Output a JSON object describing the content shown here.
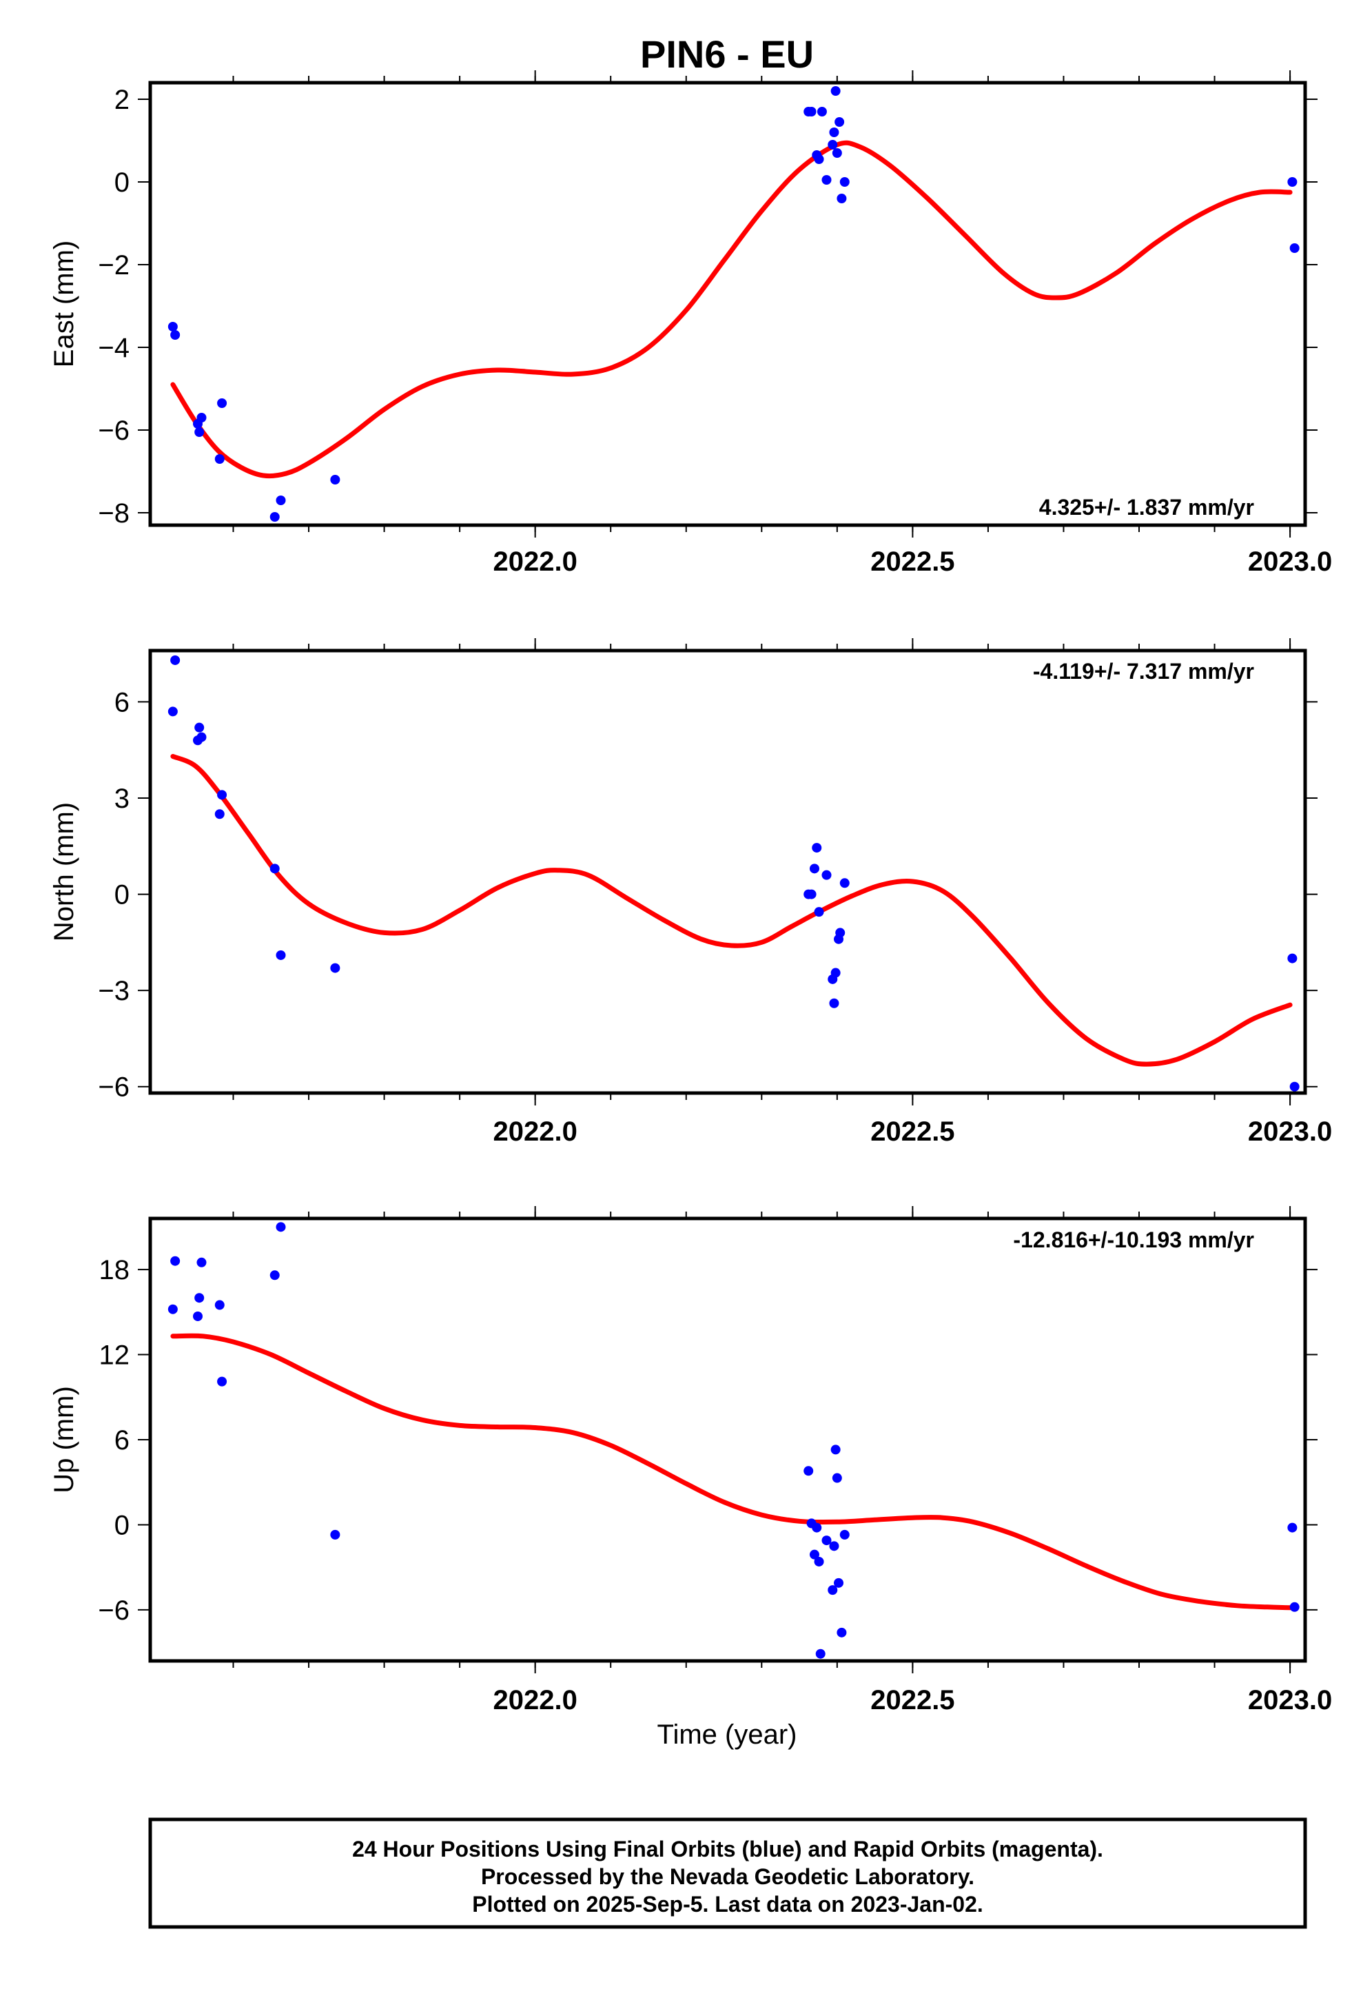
{
  "title": "PIN6 - EU",
  "xlabel": "Time (year)",
  "footer": [
    "24 Hour Positions Using Final Orbits (blue) and Rapid Orbits (magenta).",
    "Processed by the Nevada Geodetic Laboratory.",
    "Plotted on 2025-Sep-5. Last data on 2023-Jan-02."
  ],
  "colors": {
    "points": "#0000ff",
    "fit": "#ff0000",
    "frame": "#000000"
  },
  "chart_data": [
    {
      "type": "scatter",
      "name": "east",
      "ylabel": "East (mm)",
      "rate": "4.325+/- 1.837 mm/yr",
      "xlim": [
        2021.49,
        2023.02
      ],
      "ylim": [
        -8.3,
        2.4
      ],
      "yticks": [
        2,
        0,
        -2,
        -4,
        -6,
        -8
      ],
      "yticklabels": [
        "2",
        "0",
        "−2",
        "−4",
        "−6",
        "−8"
      ],
      "xticks": [
        2022.0,
        2022.5,
        2023.0
      ],
      "xticklabels": [
        "2022.0",
        "2022.5",
        "2023.0"
      ],
      "points": [
        [
          2021.52,
          -3.5
        ],
        [
          2021.523,
          -3.7
        ],
        [
          2021.553,
          -5.85
        ],
        [
          2021.555,
          -6.05
        ],
        [
          2021.558,
          -5.7
        ],
        [
          2021.582,
          -6.7
        ],
        [
          2021.585,
          -5.35
        ],
        [
          2021.655,
          -8.1
        ],
        [
          2021.663,
          -7.7
        ],
        [
          2021.735,
          -7.2
        ],
        [
          2022.362,
          1.7
        ],
        [
          2022.366,
          1.7
        ],
        [
          2022.373,
          0.65
        ],
        [
          2022.376,
          0.55
        ],
        [
          2022.38,
          1.7
        ],
        [
          2022.386,
          0.05
        ],
        [
          2022.394,
          0.9
        ],
        [
          2022.396,
          1.2
        ],
        [
          2022.398,
          2.2
        ],
        [
          2022.4,
          0.7
        ],
        [
          2022.403,
          1.45
        ],
        [
          2022.406,
          -0.4
        ],
        [
          2022.41,
          0.0
        ],
        [
          2023.003,
          0.0
        ],
        [
          2023.006,
          -1.6
        ]
      ],
      "fit": [
        [
          2021.52,
          -4.9
        ],
        [
          2021.55,
          -5.8
        ],
        [
          2021.58,
          -6.5
        ],
        [
          2021.61,
          -6.9
        ],
        [
          2021.64,
          -7.1
        ],
        [
          2021.67,
          -7.05
        ],
        [
          2021.7,
          -6.8
        ],
        [
          2021.75,
          -6.2
        ],
        [
          2021.8,
          -5.5
        ],
        [
          2021.85,
          -4.95
        ],
        [
          2021.9,
          -4.65
        ],
        [
          2021.95,
          -4.55
        ],
        [
          2022.0,
          -4.6
        ],
        [
          2022.05,
          -4.65
        ],
        [
          2022.1,
          -4.5
        ],
        [
          2022.15,
          -4.0
        ],
        [
          2022.2,
          -3.1
        ],
        [
          2022.25,
          -1.9
        ],
        [
          2022.3,
          -0.7
        ],
        [
          2022.35,
          0.3
        ],
        [
          2022.4,
          0.9
        ],
        [
          2022.43,
          0.85
        ],
        [
          2022.47,
          0.4
        ],
        [
          2022.52,
          -0.4
        ],
        [
          2022.57,
          -1.3
        ],
        [
          2022.62,
          -2.2
        ],
        [
          2022.66,
          -2.7
        ],
        [
          2022.69,
          -2.8
        ],
        [
          2022.72,
          -2.7
        ],
        [
          2022.77,
          -2.2
        ],
        [
          2022.82,
          -1.5
        ],
        [
          2022.87,
          -0.9
        ],
        [
          2022.92,
          -0.45
        ],
        [
          2022.96,
          -0.25
        ],
        [
          2023.0,
          -0.25
        ]
      ]
    },
    {
      "type": "scatter",
      "name": "north",
      "ylabel": "North (mm)",
      "rate": "-4.119+/- 7.317 mm/yr",
      "xlim": [
        2021.49,
        2023.02
      ],
      "ylim": [
        -6.2,
        7.6
      ],
      "yticks": [
        6,
        3,
        0,
        -3,
        -6
      ],
      "yticklabels": [
        "6",
        "3",
        "0",
        "−3",
        "−6"
      ],
      "xticks": [
        2022.0,
        2022.5,
        2023.0
      ],
      "xticklabels": [
        "2022.0",
        "2022.5",
        "2023.0"
      ],
      "points": [
        [
          2021.52,
          5.7
        ],
        [
          2021.523,
          7.3
        ],
        [
          2021.553,
          4.8
        ],
        [
          2021.555,
          5.2
        ],
        [
          2021.558,
          4.9
        ],
        [
          2021.582,
          2.5
        ],
        [
          2021.585,
          3.1
        ],
        [
          2021.655,
          0.8
        ],
        [
          2021.663,
          -1.9
        ],
        [
          2021.735,
          -2.3
        ],
        [
          2022.362,
          0.0
        ],
        [
          2022.366,
          0.0
        ],
        [
          2022.37,
          0.8
        ],
        [
          2022.373,
          1.45
        ],
        [
          2022.376,
          -0.55
        ],
        [
          2022.386,
          0.6
        ],
        [
          2022.394,
          -2.65
        ],
        [
          2022.396,
          -3.4
        ],
        [
          2022.398,
          -2.45
        ],
        [
          2022.402,
          -1.4
        ],
        [
          2022.404,
          -1.2
        ],
        [
          2022.41,
          0.35
        ],
        [
          2023.003,
          -2.0
        ],
        [
          2023.006,
          -6.0
        ]
      ],
      "fit": [
        [
          2021.52,
          4.3
        ],
        [
          2021.55,
          4.0
        ],
        [
          2021.58,
          3.2
        ],
        [
          2021.62,
          1.9
        ],
        [
          2021.66,
          0.6
        ],
        [
          2021.7,
          -0.3
        ],
        [
          2021.75,
          -0.9
        ],
        [
          2021.8,
          -1.2
        ],
        [
          2021.85,
          -1.1
        ],
        [
          2021.9,
          -0.5
        ],
        [
          2021.95,
          0.2
        ],
        [
          2022.0,
          0.65
        ],
        [
          2022.03,
          0.75
        ],
        [
          2022.07,
          0.6
        ],
        [
          2022.12,
          -0.1
        ],
        [
          2022.17,
          -0.8
        ],
        [
          2022.22,
          -1.4
        ],
        [
          2022.26,
          -1.6
        ],
        [
          2022.3,
          -1.5
        ],
        [
          2022.34,
          -1.0
        ],
        [
          2022.38,
          -0.5
        ],
        [
          2022.42,
          -0.05
        ],
        [
          2022.46,
          0.3
        ],
        [
          2022.5,
          0.4
        ],
        [
          2022.54,
          0.1
        ],
        [
          2022.58,
          -0.7
        ],
        [
          2022.63,
          -2.0
        ],
        [
          2022.68,
          -3.4
        ],
        [
          2022.73,
          -4.5
        ],
        [
          2022.78,
          -5.15
        ],
        [
          2022.81,
          -5.3
        ],
        [
          2022.85,
          -5.15
        ],
        [
          2022.9,
          -4.6
        ],
        [
          2022.95,
          -3.9
        ],
        [
          2023.0,
          -3.45
        ]
      ]
    },
    {
      "type": "scatter",
      "name": "up",
      "ylabel": "Up (mm)",
      "rate": "-12.816+/-10.193 mm/yr",
      "xlim": [
        2021.49,
        2023.02
      ],
      "ylim": [
        -9.6,
        21.6
      ],
      "yticks": [
        18,
        12,
        6,
        0,
        -6
      ],
      "yticklabels": [
        "18",
        "12",
        "6",
        "0",
        "−6"
      ],
      "xticks": [
        2022.0,
        2022.5,
        2023.0
      ],
      "xticklabels": [
        "2022.0",
        "2022.5",
        "2023.0"
      ],
      "points": [
        [
          2021.52,
          15.2
        ],
        [
          2021.523,
          18.6
        ],
        [
          2021.553,
          14.7
        ],
        [
          2021.555,
          16.0
        ],
        [
          2021.558,
          18.5
        ],
        [
          2021.582,
          15.5
        ],
        [
          2021.585,
          10.1
        ],
        [
          2021.655,
          17.6
        ],
        [
          2021.663,
          21.0
        ],
        [
          2021.735,
          -0.7
        ],
        [
          2022.362,
          3.8
        ],
        [
          2022.366,
          0.1
        ],
        [
          2022.37,
          -2.1
        ],
        [
          2022.373,
          -0.2
        ],
        [
          2022.376,
          -2.6
        ],
        [
          2022.386,
          -1.1
        ],
        [
          2022.394,
          -4.6
        ],
        [
          2022.396,
          -1.5
        ],
        [
          2022.398,
          5.3
        ],
        [
          2022.4,
          3.3
        ],
        [
          2022.402,
          -4.1
        ],
        [
          2022.406,
          -7.6
        ],
        [
          2022.41,
          -0.7
        ],
        [
          2022.378,
          -9.1
        ],
        [
          2023.003,
          -0.2
        ],
        [
          2023.006,
          -5.8
        ]
      ],
      "fit": [
        [
          2021.52,
          13.3
        ],
        [
          2021.56,
          13.3
        ],
        [
          2021.6,
          12.9
        ],
        [
          2021.65,
          12.0
        ],
        [
          2021.7,
          10.7
        ],
        [
          2021.75,
          9.4
        ],
        [
          2021.8,
          8.2
        ],
        [
          2021.85,
          7.4
        ],
        [
          2021.9,
          7.0
        ],
        [
          2021.95,
          6.9
        ],
        [
          2022.0,
          6.85
        ],
        [
          2022.05,
          6.5
        ],
        [
          2022.1,
          5.6
        ],
        [
          2022.15,
          4.3
        ],
        [
          2022.2,
          2.9
        ],
        [
          2022.25,
          1.6
        ],
        [
          2022.3,
          0.7
        ],
        [
          2022.35,
          0.25
        ],
        [
          2022.4,
          0.2
        ],
        [
          2022.45,
          0.35
        ],
        [
          2022.5,
          0.5
        ],
        [
          2022.54,
          0.5
        ],
        [
          2022.58,
          0.2
        ],
        [
          2022.63,
          -0.6
        ],
        [
          2022.68,
          -1.7
        ],
        [
          2022.73,
          -2.9
        ],
        [
          2022.78,
          -4.0
        ],
        [
          2022.83,
          -4.9
        ],
        [
          2022.88,
          -5.4
        ],
        [
          2022.93,
          -5.7
        ],
        [
          2022.97,
          -5.8
        ],
        [
          2023.0,
          -5.85
        ]
      ]
    }
  ]
}
